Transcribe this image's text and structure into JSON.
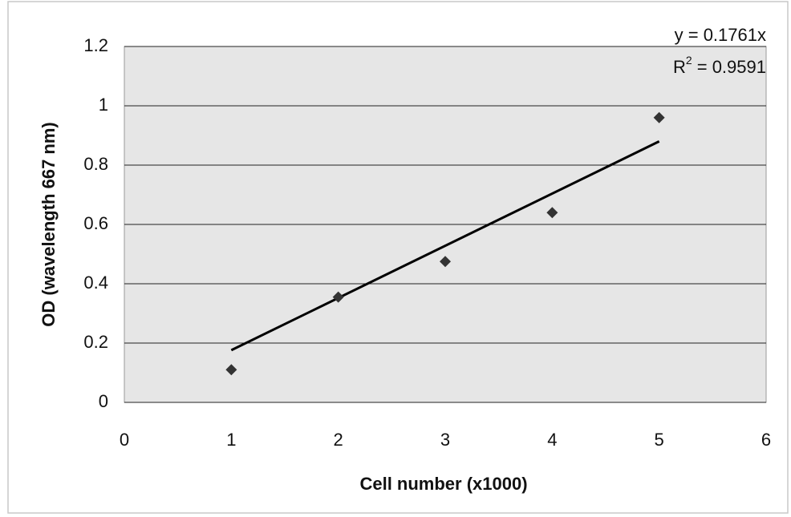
{
  "chart_data": {
    "type": "scatter",
    "x_label": "Cell number (x1000)",
    "y_label": "OD (wavelength 667 nm)",
    "equation": "y = 0.1761x",
    "r_squared": {
      "prefix": "R",
      "sup": "2",
      "suffix": " = 0.9591"
    },
    "series": [
      {
        "color": "#333333",
        "x": [
          1,
          2,
          3,
          4,
          5
        ],
        "values": [
          0.11,
          0.355,
          0.475,
          0.64,
          0.96
        ]
      }
    ],
    "trendline": {
      "color": "#000000",
      "x": [
        1,
        5
      ],
      "values": [
        0.176,
        0.88
      ]
    },
    "xlim": [
      0,
      6
    ],
    "xticks": [
      0,
      1,
      2,
      3,
      4,
      5,
      6
    ],
    "ylim": [
      0,
      1.2
    ],
    "yticks": [
      0,
      0.2,
      0.4,
      0.6,
      0.8,
      1,
      1.2
    ],
    "grid": true
  }
}
